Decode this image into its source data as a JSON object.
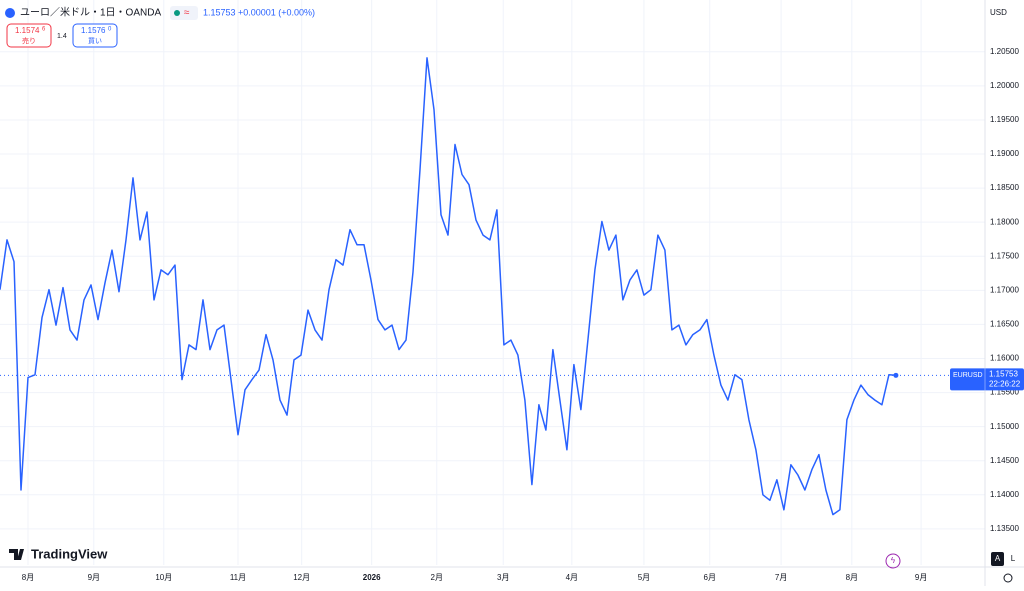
{
  "header": {
    "symbol": "ユーロ／米ドル・1日・OANDA",
    "price": "1.15753",
    "change": "+0.00001 (+0.00%)",
    "sell_price": "1.1574",
    "sell_price_small": "6",
    "sell_label": "売り",
    "spread": "1.4",
    "buy_price": "1.1576",
    "buy_price_small": "0",
    "buy_label": "買い",
    "currency": "USD"
  },
  "last_tag": {
    "symbol": "EURUSD",
    "price": "1.15753",
    "countdown": "22:26:22"
  },
  "footer": {
    "brand": "TradingView",
    "auto": "A",
    "log": "L"
  },
  "chart_data": {
    "type": "line",
    "color": "#2962ff",
    "values": [
      1.1701,
      1.1774,
      1.1742,
      1.1407,
      1.1572,
      1.1576,
      1.166,
      1.1701,
      1.1649,
      1.1704,
      1.1642,
      1.1627,
      1.1686,
      1.1708,
      1.1657,
      1.1711,
      1.1759,
      1.1698,
      1.1774,
      1.1865,
      1.1774,
      1.1815,
      1.1686,
      1.173,
      1.1723,
      1.1737,
      1.1569,
      1.162,
      1.1613,
      1.1686,
      1.1613,
      1.1642,
      1.1649,
      1.1569,
      1.1488,
      1.1554,
      1.1569,
      1.1583,
      1.1635,
      1.1598,
      1.1539,
      1.1517,
      1.1598,
      1.1605,
      1.1671,
      1.1642,
      1.1627,
      1.1701,
      1.1745,
      1.1737,
      1.1789,
      1.1767,
      1.1767,
      1.1715,
      1.1657,
      1.1642,
      1.1649,
      1.1613,
      1.1627,
      1.1727,
      1.1877,
      1.2041,
      1.1965,
      1.1811,
      1.1781,
      1.1914,
      1.187,
      1.1855,
      1.1803,
      1.1781,
      1.1774,
      1.1818,
      1.162,
      1.1627,
      1.1605,
      1.1539,
      1.1415,
      1.1532,
      1.1495,
      1.1613,
      1.1539,
      1.1466,
      1.1591,
      1.1525,
      1.1627,
      1.173,
      1.1801,
      1.1759,
      1.1781,
      1.1686,
      1.1715,
      1.173,
      1.1693,
      1.1701,
      1.1781,
      1.1759,
      1.1642,
      1.1649,
      1.162,
      1.1635,
      1.1642,
      1.1657,
      1.1605,
      1.1561,
      1.1539,
      1.1576,
      1.1569,
      1.151,
      1.1466,
      1.14,
      1.1392,
      1.1422,
      1.1378,
      1.1444,
      1.1429,
      1.1407,
      1.1437,
      1.1459,
      1.1407,
      1.1371,
      1.1378,
      1.151,
      1.1539,
      1.1561,
      1.1547,
      1.1539,
      1.1532,
      1.1576,
      1.15753
    ],
    "xlim": [
      0,
      139.3
    ],
    "xticks": [
      {
        "value": 4,
        "label": "8月"
      },
      {
        "value": 13.4,
        "label": "9月"
      },
      {
        "value": 23.4,
        "label": "10月"
      },
      {
        "value": 34,
        "label": "11月"
      },
      {
        "value": 43.1,
        "label": "12月"
      },
      {
        "value": 53.1,
        "label": "2026"
      },
      {
        "value": 62.4,
        "label": "2月"
      },
      {
        "value": 71.9,
        "label": "3月"
      },
      {
        "value": 81.7,
        "label": "4月"
      },
      {
        "value": 92,
        "label": "5月"
      },
      {
        "value": 101.4,
        "label": "6月"
      },
      {
        "value": 111.6,
        "label": "7月"
      },
      {
        "value": 121.7,
        "label": "8月"
      },
      {
        "value": 131.6,
        "label": "9月"
      }
    ],
    "ylim": [
      1.1297,
      1.2126
    ],
    "yticks": [
      {
        "value": 1.135,
        "label": "1.13500"
      },
      {
        "value": 1.14,
        "label": "1.14000"
      },
      {
        "value": 1.145,
        "label": "1.14500"
      },
      {
        "value": 1.15,
        "label": "1.15000"
      },
      {
        "value": 1.155,
        "label": "1.15500"
      },
      {
        "value": 1.16,
        "label": "1.16000"
      },
      {
        "value": 1.165,
        "label": "1.16500"
      },
      {
        "value": 1.17,
        "label": "1.17000"
      },
      {
        "value": 1.175,
        "label": "1.17500"
      },
      {
        "value": 1.18,
        "label": "1.18000"
      },
      {
        "value": 1.185,
        "label": "1.18500"
      },
      {
        "value": 1.19,
        "label": "1.19000"
      },
      {
        "value": 1.195,
        "label": "1.19500"
      },
      {
        "value": 1.2,
        "label": "1.20000"
      },
      {
        "value": 1.205,
        "label": "1.20500"
      }
    ],
    "grid": true
  }
}
